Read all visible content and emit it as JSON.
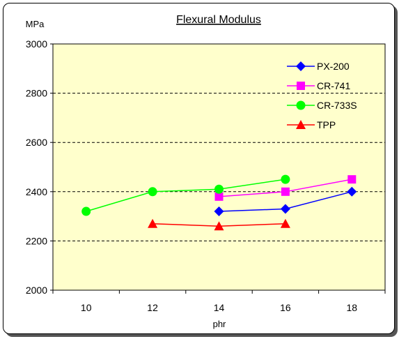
{
  "chart_data": {
    "type": "line",
    "title": "Flexural Modulus",
    "ylabel": "MPa",
    "xlabel": "phr",
    "xlim": [
      9,
      19
    ],
    "ylim": [
      2000,
      3000
    ],
    "x_ticks": [
      10,
      12,
      14,
      16,
      18
    ],
    "y_ticks": [
      2000,
      2200,
      2400,
      2600,
      2800,
      3000
    ],
    "grid": "horizontal dashed",
    "legend_position": "top-right",
    "plot_background": "#ffffcc",
    "series": [
      {
        "name": "PX-200",
        "color": "#0000ff",
        "marker": "diamond",
        "points": [
          [
            14,
            2320
          ],
          [
            16,
            2330
          ],
          [
            18,
            2400
          ]
        ]
      },
      {
        "name": "CR-741",
        "color": "#ff00ff",
        "marker": "square",
        "points": [
          [
            14,
            2380
          ],
          [
            16,
            2400
          ],
          [
            18,
            2450
          ]
        ]
      },
      {
        "name": "CR-733S",
        "color": "#00ff00",
        "marker": "circle",
        "points": [
          [
            10,
            2320
          ],
          [
            12,
            2400
          ],
          [
            14,
            2410
          ],
          [
            16,
            2450
          ]
        ]
      },
      {
        "name": "TPP",
        "color": "#ff0000",
        "marker": "triangle",
        "points": [
          [
            12,
            2270
          ],
          [
            14,
            2260
          ],
          [
            16,
            2270
          ]
        ]
      }
    ]
  }
}
